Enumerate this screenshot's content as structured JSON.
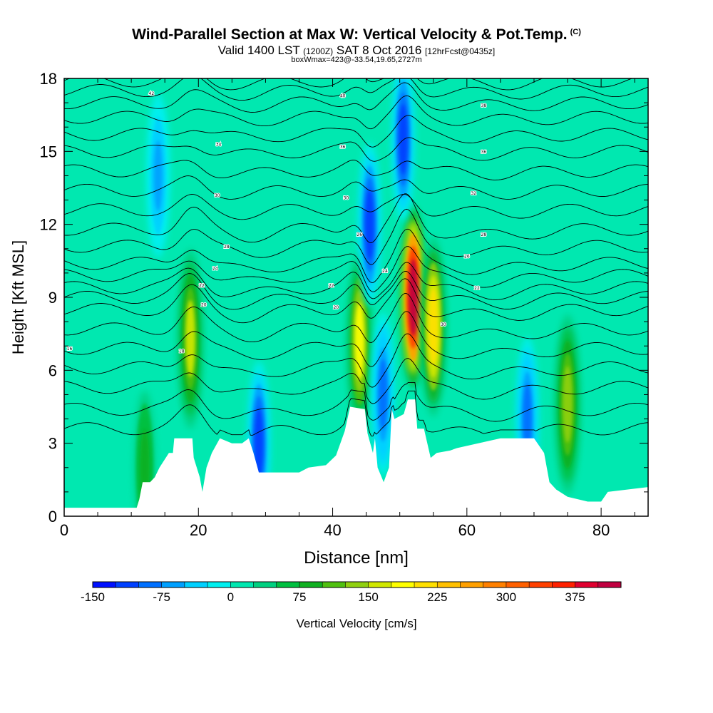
{
  "header": {
    "title": "Wind-Parallel Section at Max W: Vertical Velocity & Pot.Temp.",
    "copyright": "(C)",
    "valid_prefix": "Valid 1400 LST",
    "valid_zulu": "(1200Z)",
    "valid_date": "SAT 8 Oct 2016",
    "forecast": "[12hrFcst@0435z]",
    "box_info": "boxWmax=423@-33.54,19.65,2727m"
  },
  "chart_data": {
    "type": "heatmap",
    "title": "Wind-Parallel Section at Max W: Vertical Velocity & Pot.Temp.",
    "xlabel": "Distance [nm]",
    "ylabel": "Height [Kft MSL]",
    "xlim": [
      0,
      87
    ],
    "ylim": [
      0,
      18
    ],
    "xticks": [
      0,
      20,
      40,
      60,
      80
    ],
    "yticks": [
      0,
      3,
      6,
      9,
      12,
      15,
      18
    ],
    "colorbar": {
      "label": "Vertical Velocity [cm/s]",
      "min": -150,
      "max": 425,
      "step": 25,
      "tick_labels": [
        -150,
        -75,
        0,
        75,
        150,
        225,
        300,
        375
      ],
      "colors": [
        "#0010ff",
        "#0040ff",
        "#0070ff",
        "#00a0ff",
        "#00d0ff",
        "#00f0f0",
        "#00e8b0",
        "#00d080",
        "#00c040",
        "#10b020",
        "#50c010",
        "#90d010",
        "#d0e800",
        "#ffff00",
        "#ffe000",
        "#ffc000",
        "#ffa000",
        "#ff8000",
        "#ff6000",
        "#ff4000",
        "#ff2000",
        "#e00030",
        "#c00040"
      ]
    },
    "max_w_cm_s": 423,
    "max_w_location": {
      "x_nm": 52,
      "height_kft": 8.9
    },
    "updraft_cores": [
      {
        "x_nm": 52.0,
        "height_kft": 9.0,
        "w_cm_s": 423
      },
      {
        "x_nm": 55.0,
        "height_kft": 7.8,
        "w_cm_s": 210
      },
      {
        "x_nm": 44.0,
        "height_kft": 7.2,
        "w_cm_s": 175
      },
      {
        "x_nm": 18.8,
        "height_kft": 7.3,
        "w_cm_s": 150
      },
      {
        "x_nm": 75.0,
        "height_kft": 4.6,
        "w_cm_s": 140
      },
      {
        "x_nm": 12.0,
        "height_kft": 2.0,
        "w_cm_s": 90
      }
    ],
    "downdraft_cores": [
      {
        "x_nm": 45.5,
        "height_kft": 12.0,
        "w_cm_s": -120
      },
      {
        "x_nm": 50.5,
        "height_kft": 15.5,
        "w_cm_s": -110
      },
      {
        "x_nm": 29.0,
        "height_kft": 3.0,
        "w_cm_s": -110
      },
      {
        "x_nm": 47.5,
        "height_kft": 5.0,
        "w_cm_s": -80
      },
      {
        "x_nm": 69.0,
        "height_kft": 4.0,
        "w_cm_s": -80
      },
      {
        "x_nm": 14.0,
        "height_kft": 14.0,
        "w_cm_s": -60
      }
    ],
    "terrain_profile_kft": [
      [
        0,
        0.35
      ],
      [
        10.8,
        0.35
      ],
      [
        11.2,
        0.7
      ],
      [
        11.7,
        1.4
      ],
      [
        12.8,
        1.4
      ],
      [
        13.5,
        1.6
      ],
      [
        14.2,
        2.0
      ],
      [
        15.6,
        2.6
      ],
      [
        16.2,
        2.6
      ],
      [
        16.4,
        3.2
      ],
      [
        19.1,
        3.2
      ],
      [
        19.3,
        2.4
      ],
      [
        20.2,
        1.6
      ],
      [
        20.6,
        1.0
      ],
      [
        21.2,
        2.0
      ],
      [
        22,
        2.6
      ],
      [
        23.2,
        3.2
      ],
      [
        25,
        3.0
      ],
      [
        26.5,
        3.0
      ],
      [
        27.5,
        3.2
      ],
      [
        28.2,
        2.6
      ],
      [
        29,
        1.8
      ],
      [
        35,
        1.8
      ],
      [
        36.4,
        2.0
      ],
      [
        39,
        2.1
      ],
      [
        40.5,
        2.5
      ],
      [
        41.8,
        3.5
      ],
      [
        42.6,
        4.5
      ],
      [
        44.8,
        4.4
      ],
      [
        45.2,
        3.4
      ],
      [
        46,
        2.6
      ],
      [
        46.3,
        3.2
      ],
      [
        46.7,
        2.0
      ],
      [
        47.6,
        1.4
      ],
      [
        48.4,
        2.0
      ],
      [
        48.8,
        4.4
      ],
      [
        49.2,
        4.0
      ],
      [
        50.6,
        4.2
      ],
      [
        51.2,
        4.8
      ],
      [
        52.3,
        4.8
      ],
      [
        52.6,
        3.6
      ],
      [
        53.6,
        3.6
      ],
      [
        54.6,
        2.4
      ],
      [
        55.5,
        2.6
      ],
      [
        57.5,
        2.7
      ],
      [
        58.5,
        2.8
      ],
      [
        65,
        3.2
      ],
      [
        70,
        3.2
      ],
      [
        71.5,
        2.6
      ],
      [
        72.3,
        1.4
      ],
      [
        73.3,
        1.1
      ],
      [
        75,
        0.8
      ],
      [
        78,
        0.6
      ],
      [
        80,
        0.6
      ],
      [
        81,
        1.0
      ],
      [
        87,
        1.2
      ]
    ],
    "theta_contours": {
      "levels_k": [
        14,
        16,
        18,
        20,
        22,
        24,
        26,
        28,
        30,
        32,
        34,
        36,
        38,
        40,
        42,
        44,
        46,
        48,
        50,
        52,
        54,
        56
      ],
      "base_heights_kft": [
        3.6,
        4.4,
        5.3,
        6.1,
        6.9,
        7.7,
        8.5,
        9.0,
        9.4,
        9.9,
        10.4,
        11.1,
        11.8,
        12.6,
        13.4,
        14.2,
        15.0,
        15.7,
        16.4,
        17.0,
        17.5,
        17.9
      ],
      "labels": [
        {
          "text": "16",
          "x_nm": 0.8,
          "height_kft": 6.9
        },
        {
          "text": "18",
          "x_nm": 17.5,
          "height_kft": 6.8
        },
        {
          "text": "22",
          "x_nm": 20.5,
          "height_kft": 9.5
        },
        {
          "text": "20",
          "x_nm": 20.8,
          "height_kft": 8.7
        },
        {
          "text": "24",
          "x_nm": 22.5,
          "height_kft": 10.2
        },
        {
          "text": "28",
          "x_nm": 24.2,
          "height_kft": 11.1
        },
        {
          "text": "30",
          "x_nm": 22.8,
          "height_kft": 13.2
        },
        {
          "text": "34",
          "x_nm": 23.0,
          "height_kft": 15.3
        },
        {
          "text": "42",
          "x_nm": 13.0,
          "height_kft": 17.4
        },
        {
          "text": "20",
          "x_nm": 40.5,
          "height_kft": 8.6
        },
        {
          "text": "22",
          "x_nm": 39.8,
          "height_kft": 9.5
        },
        {
          "text": "26",
          "x_nm": 44.0,
          "height_kft": 11.6
        },
        {
          "text": "30",
          "x_nm": 42.0,
          "height_kft": 13.1
        },
        {
          "text": "36",
          "x_nm": 41.5,
          "height_kft": 15.2
        },
        {
          "text": "40",
          "x_nm": 41.5,
          "height_kft": 17.3
        },
        {
          "text": "24",
          "x_nm": 47.8,
          "height_kft": 10.1
        },
        {
          "text": "30",
          "x_nm": 56.5,
          "height_kft": 7.9
        },
        {
          "text": "22",
          "x_nm": 61.5,
          "height_kft": 9.4
        },
        {
          "text": "26",
          "x_nm": 60.0,
          "height_kft": 10.7
        },
        {
          "text": "28",
          "x_nm": 62.5,
          "height_kft": 11.6
        },
        {
          "text": "32",
          "x_nm": 61.0,
          "height_kft": 13.3
        },
        {
          "text": "36",
          "x_nm": 62.5,
          "height_kft": 15.0
        },
        {
          "text": "38",
          "x_nm": 62.5,
          "height_kft": 16.9
        }
      ]
    }
  }
}
